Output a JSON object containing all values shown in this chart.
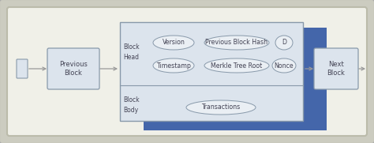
{
  "bg_outer": "#ccccc0",
  "bg_inner": "#f0f0e8",
  "block_fill": "#dce4ed",
  "block_border": "#8899aa",
  "blue_accent": "#4466aa",
  "pill_fill": "#eaeff4",
  "pill_border": "#8899aa",
  "arrow_color": "#999999",
  "text_color": "#444455",
  "prev_block_label": "Previous\nBlock",
  "next_block_label": "Next\nBlock",
  "block_head_label": "Block\nHead",
  "block_body_label": "Block\nBody",
  "pills_row1": [
    "Version",
    "Previous Block Hash",
    "D"
  ],
  "pills_row2": [
    "Timestamp",
    "Merkle Tree Root",
    "Nonce"
  ],
  "pills_body": "Transactions",
  "font_size": 6.0
}
